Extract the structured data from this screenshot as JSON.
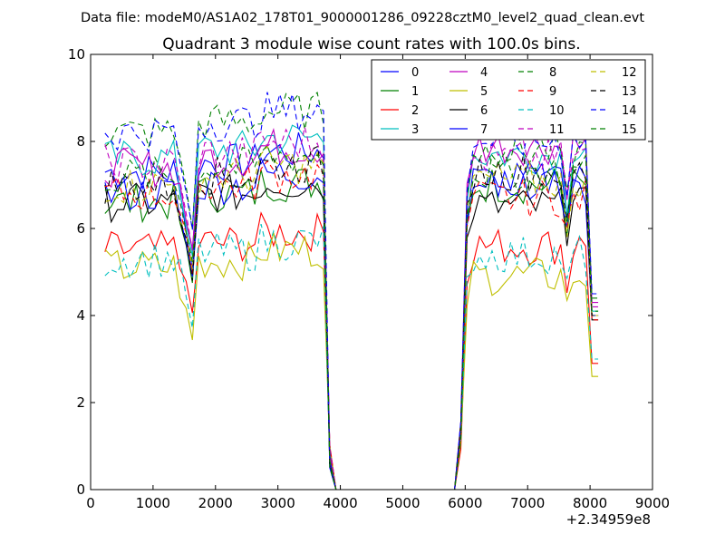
{
  "suptitle": "Data file: modeM0/AS1A02_178T01_9000001286_09228cztM0_level2_quad_clean.evt",
  "chart_data": {
    "type": "line",
    "title": "Quadrant 3 module wise count rates with 100.0s bins.",
    "xlabel": "",
    "ylabel": "",
    "x_offset_label": "+2.34959e8",
    "xlim": [
      0,
      9000
    ],
    "ylim": [
      0,
      10
    ],
    "xticks": [
      0,
      1000,
      2000,
      3000,
      4000,
      5000,
      6000,
      7000,
      8000,
      9000
    ],
    "yticks": [
      0,
      2,
      4,
      6,
      8,
      10
    ],
    "grid": false,
    "legend": {
      "placement": "top-right",
      "columns": 4
    },
    "x": [
      230,
      330,
      430,
      530,
      630,
      730,
      830,
      930,
      1030,
      1130,
      1230,
      1330,
      1430,
      1530,
      1630,
      1730,
      1830,
      1930,
      2030,
      2130,
      2230,
      2330,
      2430,
      2530,
      2630,
      2730,
      2830,
      2930,
      3030,
      3130,
      3230,
      3330,
      3430,
      3530,
      3630,
      3730,
      3830,
      3930,
      4030,
      4130,
      4230,
      4330,
      4430,
      4530,
      4630,
      4730,
      4830,
      4930,
      5030,
      5130,
      5230,
      5330,
      5430,
      5530,
      5630,
      5730,
      5830,
      5930,
      6030,
      6130,
      6230,
      6330,
      6430,
      6530,
      6630,
      6730,
      6830,
      6930,
      7030,
      7130,
      7230,
      7330,
      7430,
      7530,
      7630,
      7730,
      7830,
      7930,
      8030,
      8130
    ],
    "series": [
      {
        "name": "0",
        "color": "#0000ff",
        "dash": "solid",
        "level": 7.3,
        "dip": 5.0,
        "level2": 7.0,
        "dip2": 6.2,
        "end": 4.0
      },
      {
        "name": "1",
        "color": "#008000",
        "dash": "solid",
        "level": 6.6,
        "dip": 4.9,
        "level2": 7.0,
        "dip2": 6.0,
        "end": 4.0
      },
      {
        "name": "2",
        "color": "#ff0000",
        "dash": "solid",
        "level": 5.5,
        "dip": 4.0,
        "level2": 5.6,
        "dip2": 4.6,
        "end": 2.9
      },
      {
        "name": "3",
        "color": "#00bfbf",
        "dash": "solid",
        "level": 7.6,
        "dip": 5.2,
        "level2": 7.7,
        "dip2": 6.5,
        "end": 4.1
      },
      {
        "name": "4",
        "color": "#bf00bf",
        "dash": "solid",
        "level": 7.4,
        "dip": 5.5,
        "level2": 7.9,
        "dip2": 6.9,
        "end": 4.3
      },
      {
        "name": "5",
        "color": "#bfbf00",
        "dash": "solid",
        "level": 5.1,
        "dip": 3.5,
        "level2": 4.9,
        "dip2": 4.2,
        "end": 2.6
      },
      {
        "name": "6",
        "color": "#000000",
        "dash": "solid",
        "level": 6.6,
        "dip": 4.8,
        "level2": 6.5,
        "dip2": 5.8,
        "end": 3.9
      },
      {
        "name": "7",
        "color": "#0000ff",
        "dash": "solid",
        "level": 6.8,
        "dip": 4.8,
        "level2": 7.1,
        "dip2": 6.0,
        "end": 4.0
      },
      {
        "name": "8",
        "color": "#008000",
        "dash": "dashed",
        "level": 8.2,
        "dip": 5.9,
        "level2": 7.8,
        "dip2": 6.7,
        "end": 4.4
      },
      {
        "name": "9",
        "color": "#ff0000",
        "dash": "dashed",
        "level": 6.8,
        "dip": 5.0,
        "level2": 6.7,
        "dip2": 5.9,
        "end": 3.9
      },
      {
        "name": "10",
        "color": "#00bfbf",
        "dash": "dashed",
        "level": 5.3,
        "dip": 3.7,
        "level2": 5.4,
        "dip2": 4.7,
        "end": 3.0
      },
      {
        "name": "11",
        "color": "#bf00bf",
        "dash": "dashed",
        "level": 7.5,
        "dip": 5.4,
        "level2": 7.6,
        "dip2": 6.6,
        "end": 4.2
      },
      {
        "name": "12",
        "color": "#bfbf00",
        "dash": "dashed",
        "level": 7.0,
        "dip": 5.0,
        "level2": 7.1,
        "dip2": 6.0,
        "end": 4.0
      },
      {
        "name": "13",
        "color": "#000000",
        "dash": "dashed",
        "level": 7.0,
        "dip": 5.0,
        "level2": 7.3,
        "dip2": 6.1,
        "end": 4.0
      },
      {
        "name": "14",
        "color": "#0000ff",
        "dash": "dashed",
        "level": 8.2,
        "dip": 6.0,
        "level2": 8.0,
        "dip2": 6.9,
        "end": 4.5
      },
      {
        "name": "15",
        "color": "#008000",
        "dash": "dashed",
        "level": 7.2,
        "dip": 5.2,
        "level2": 7.3,
        "dip2": 6.3,
        "end": 4.1
      }
    ]
  }
}
